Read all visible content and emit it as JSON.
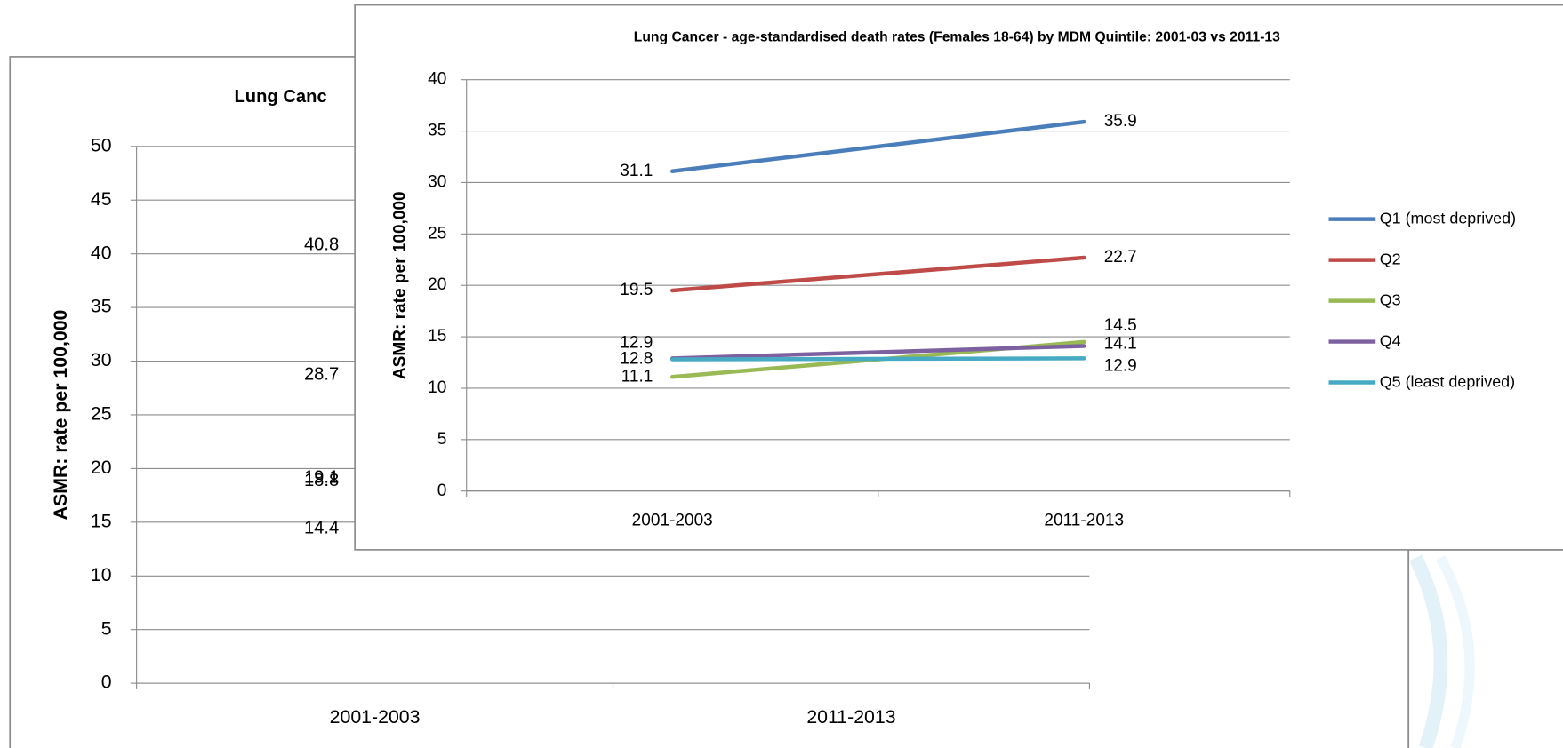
{
  "chart_data": [
    {
      "type": "line",
      "title": "Lung Canc",
      "y_label": "ASMR: rate per 100,000",
      "categories": [
        "2001-2003",
        "2011-2013"
      ],
      "series": [
        {
          "color": "#4a7ebb",
          "values": [
            40.8,
            null
          ]
        },
        {
          "color": "#be4b48",
          "values": [
            28.7,
            null
          ]
        },
        {
          "color": "#98b954",
          "values": [
            19.1,
            null
          ]
        },
        {
          "color": "#7d60a0",
          "values": [
            18.8,
            null
          ]
        },
        {
          "color": "#46aac5",
          "values": [
            14.4,
            null
          ]
        }
      ],
      "ylim": [
        0,
        50
      ],
      "yticks": [
        0,
        5,
        10,
        15,
        20,
        25,
        30,
        35,
        40,
        45,
        50
      ],
      "grid": true
    },
    {
      "type": "line",
      "title": "Lung Cancer - age-standardised death rates (Females 18-64) by MDM Quintile: 2001-03 vs 2011-13",
      "y_label": "ASMR: rate per 100,000",
      "categories": [
        "2001-2003",
        "2011-2013"
      ],
      "series": [
        {
          "name": "Q1 (most deprived)",
          "color": "#4a7ebb",
          "values": [
            31.1,
            35.9
          ]
        },
        {
          "name": "Q2",
          "color": "#be4b48",
          "values": [
            19.5,
            22.7
          ]
        },
        {
          "name": "Q3",
          "color": "#98b954",
          "values": [
            11.1,
            14.5
          ]
        },
        {
          "name": "Q4",
          "color": "#7d60a0",
          "values": [
            12.9,
            14.1
          ]
        },
        {
          "name": "Q5 (least deprived)",
          "color": "#46aac5",
          "values": [
            12.8,
            12.9
          ]
        }
      ],
      "ylim": [
        0,
        40
      ],
      "yticks": [
        0,
        5,
        10,
        15,
        20,
        25,
        30,
        35,
        40
      ],
      "grid": true,
      "legend": "right"
    }
  ]
}
